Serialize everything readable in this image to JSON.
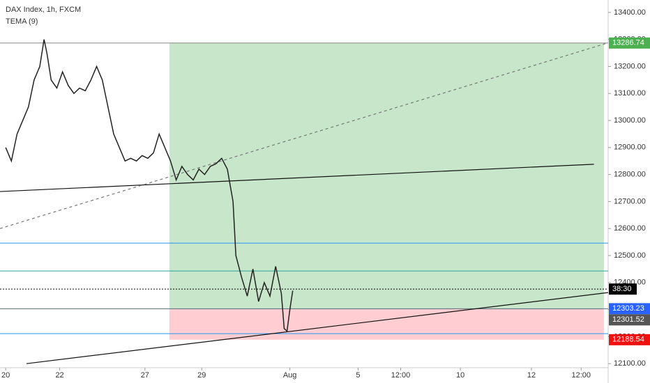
{
  "chart_data": {
    "type": "line",
    "title": "DAX Index, 1h, FXCM",
    "subtitle": "TEMA (9)",
    "xlim": [
      -0.2,
      21.2
    ],
    "ylim": [
      12085,
      13446
    ],
    "xticks": [
      {
        "value": 0,
        "label": "20"
      },
      {
        "value": 1.9,
        "label": "22"
      },
      {
        "value": 4.9,
        "label": "27"
      },
      {
        "value": 6.9,
        "label": "29"
      },
      {
        "value": 10,
        "label": "Aug"
      },
      {
        "value": 12.4,
        "label": "5"
      },
      {
        "value": 13.9,
        "label": "12:00"
      },
      {
        "value": 16,
        "label": "10"
      },
      {
        "value": 18.5,
        "label": "12"
      },
      {
        "value": 20.25,
        "label": "12:00"
      }
    ],
    "yticks": [
      {
        "value": 12100,
        "label": "12100.00"
      },
      {
        "value": 12200,
        "label": "12200.00"
      },
      {
        "value": 12300,
        "label": "12300.00"
      },
      {
        "value": 12400,
        "label": "12400.00"
      },
      {
        "value": 12500,
        "label": "12500.00"
      },
      {
        "value": 12600,
        "label": "12600.00"
      },
      {
        "value": 12700,
        "label": "12700.00"
      },
      {
        "value": 12800,
        "label": "12800.00"
      },
      {
        "value": 12900,
        "label": "12900.00"
      },
      {
        "value": 13000,
        "label": "13000.00"
      },
      {
        "value": 13100,
        "label": "13100.00"
      },
      {
        "value": 13200,
        "label": "13200.00"
      },
      {
        "value": 13300,
        "label": "13300.00"
      },
      {
        "value": 13400,
        "label": "13400.00"
      }
    ],
    "series": [
      {
        "color": "#222222",
        "x": [
          0,
          0.2,
          0.4,
          0.6,
          0.8,
          1.0,
          1.2,
          1.35,
          1.45,
          1.6,
          1.8,
          2.0,
          2.2,
          2.4,
          2.6,
          2.8,
          3.0,
          3.2,
          3.4,
          3.6,
          3.8,
          4.0,
          4.2,
          4.4,
          4.6,
          4.8,
          5.0,
          5.2,
          5.4,
          5.6,
          5.8,
          6.0,
          6.2,
          6.4,
          6.6,
          6.8,
          7.0,
          7.2,
          7.4,
          7.6,
          7.8,
          8.0,
          8.1,
          8.3,
          8.5,
          8.7,
          8.9,
          9.1,
          9.3,
          9.5,
          9.7,
          9.8,
          9.9,
          10.0,
          10.1
        ],
        "values": [
          12900,
          12850,
          12950,
          13000,
          13050,
          13150,
          13200,
          13300,
          13250,
          13150,
          13120,
          13180,
          13130,
          13100,
          13120,
          13110,
          13150,
          13200,
          13150,
          13050,
          12950,
          12900,
          12850,
          12860,
          12850,
          12870,
          12860,
          12880,
          12950,
          12900,
          12850,
          12780,
          12830,
          12800,
          12780,
          12820,
          12800,
          12830,
          12840,
          12860,
          12820,
          12700,
          12500,
          12420,
          12350,
          12450,
          12330,
          12400,
          12350,
          12460,
          12360,
          12230,
          12220,
          12300,
          12370
        ]
      }
    ],
    "position": {
      "start": 5.76,
      "end": 21.05,
      "target": 13286.74,
      "entry": 12303.23,
      "stop": 12188.54,
      "profit_color": "#c8e6c9",
      "loss_color": "#ffcdd2"
    },
    "hlines": [
      {
        "value": 13286.74,
        "color": "#888888"
      },
      {
        "value": 12546,
        "color": "#2196f3"
      },
      {
        "value": 12443,
        "color": "#26a69a"
      },
      {
        "value": 12303.23,
        "color": "#546e7a"
      },
      {
        "value": 12211,
        "color": "#2196f3"
      }
    ],
    "trendlines": [
      {
        "x": [
          -0.2,
          20.7
        ],
        "y": [
          12737,
          12838
        ],
        "color": "#111111",
        "dashed": false
      },
      {
        "x": [
          -0.2,
          21.15
        ],
        "y": [
          12600,
          13286
        ],
        "color": "#777777",
        "dashed": true
      },
      {
        "x": [
          0.73,
          21.2
        ],
        "y": [
          12100,
          12363
        ],
        "color": "#111111",
        "dashed": false
      }
    ],
    "countdown": {
      "value": 12376,
      "label": "38:30"
    },
    "price_tags": [
      {
        "value": 13286.74,
        "color": "#4caf50"
      },
      {
        "value": 12303.23,
        "color": "#2962ff"
      },
      {
        "value": 12301.52,
        "color": "#555555"
      },
      {
        "value": 12188.54,
        "color": "#f01010"
      }
    ]
  }
}
